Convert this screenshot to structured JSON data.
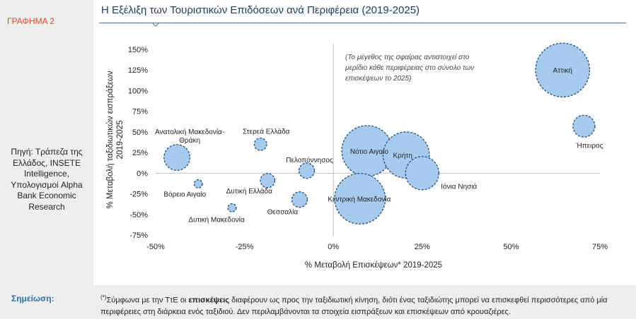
{
  "side_label": "ΓΡΑΦΗΜΑ 2",
  "source_text": "Πηγή: Τράπεζα της Ελλάδος, INSETE Intelligence, Υπολογισμοί Alpha Bank Economic Research",
  "note": {
    "label": "Σημείωση:",
    "marker": "(*)",
    "text_before": "Σύμφωνα με την ΤτΕ οι ",
    "bold": "επισκέψεις",
    "text_after": " διαφέρουν ως προς την ταξιδιωτική κίνηση, διότι ένας ταξιδιώτης μπορεί να επισκεφθεί περισσότερες από μία περιφέρειες στη διάρκεια ενός ταξιδιού. Δεν περιλαμβάνονται τα στοιχεία εισπράξεων και επισκέψεων από κρουαζιέρες."
  },
  "chart_data": {
    "type": "bubble",
    "title": "Η Εξέλιξη των Τουριστικών Επιδόσεων ανά Περιφέρεια (2019-2025)",
    "xlabel": "% Μεταβολή Επισκέψεων* 2019-2025",
    "ylabel_line1": "% Μεταβολή ταξιδιωτικών εισπράξεων",
    "ylabel_line2": "2019-2025",
    "xlim": [
      -50,
      75
    ],
    "ylim": [
      -75,
      150
    ],
    "x_ticks": [
      -50,
      -25,
      0,
      25,
      50,
      75
    ],
    "x_tick_labels": [
      "-50%",
      "-25%",
      "0%",
      "25%",
      "50%",
      "75%"
    ],
    "y_ticks": [
      150,
      125,
      100,
      75,
      50,
      25,
      0,
      -25,
      -50,
      -75
    ],
    "y_tick_labels": [
      "150%",
      "125%",
      "100%",
      "75%",
      "50%",
      "25%",
      "0%",
      "-25%",
      "-50%",
      "-75%"
    ],
    "annotation_lines": [
      "(Το μέγεθος της σφαίρας αντιστοιχεί στο",
      "μερίδιο κάθε περιφέρειας στο σύνολο των",
      "επισκέψεων το 2025)"
    ],
    "bubble_color": "#a7cbef",
    "bubble_stroke": "#1f4e79",
    "points": [
      {
        "label": "Αττική",
        "x": 64.5,
        "y": 125,
        "size": 17
      },
      {
        "label": "Ήπειρος",
        "x": 70.5,
        "y": 57,
        "size": 2.8
      },
      {
        "label": "Νότιο Αιγαίο",
        "x": 9.5,
        "y": 27,
        "size": 15
      },
      {
        "label": "Κρήτη",
        "x": 20.5,
        "y": 22,
        "size": 12.5
      },
      {
        "label": "Ιόνια Νησιά",
        "x": 25,
        "y": 0,
        "size": 6.5
      },
      {
        "label": "Κεντρική Μακεδονία",
        "x": 7.5,
        "y": -31,
        "size": 15
      },
      {
        "label": "Ανατολική Μακεδονία-Θράκη",
        "label_lines": [
          "Ανατολική Μακεδονία-",
          "Θράκη"
        ],
        "x": -44,
        "y": 19,
        "size": 3.9
      },
      {
        "label": "Στερεά Ελλάδα",
        "x": -20.5,
        "y": 35,
        "size": 0.9
      },
      {
        "label": "Πελοπόννησος",
        "x": -7.5,
        "y": 3,
        "size": 1.4
      },
      {
        "label": "Δυτική Ελλάδα",
        "x": -18.5,
        "y": -9,
        "size": 1.2
      },
      {
        "label": "Βόρειο Αιγαίο",
        "x": -38,
        "y": -13,
        "size": 0.4
      },
      {
        "label": "Θεσσαλία",
        "x": -9.5,
        "y": -32,
        "size": 1.4
      },
      {
        "label": "Δυτική Μακεδονία",
        "x": -28.5,
        "y": -42,
        "size": 0.4
      }
    ]
  }
}
